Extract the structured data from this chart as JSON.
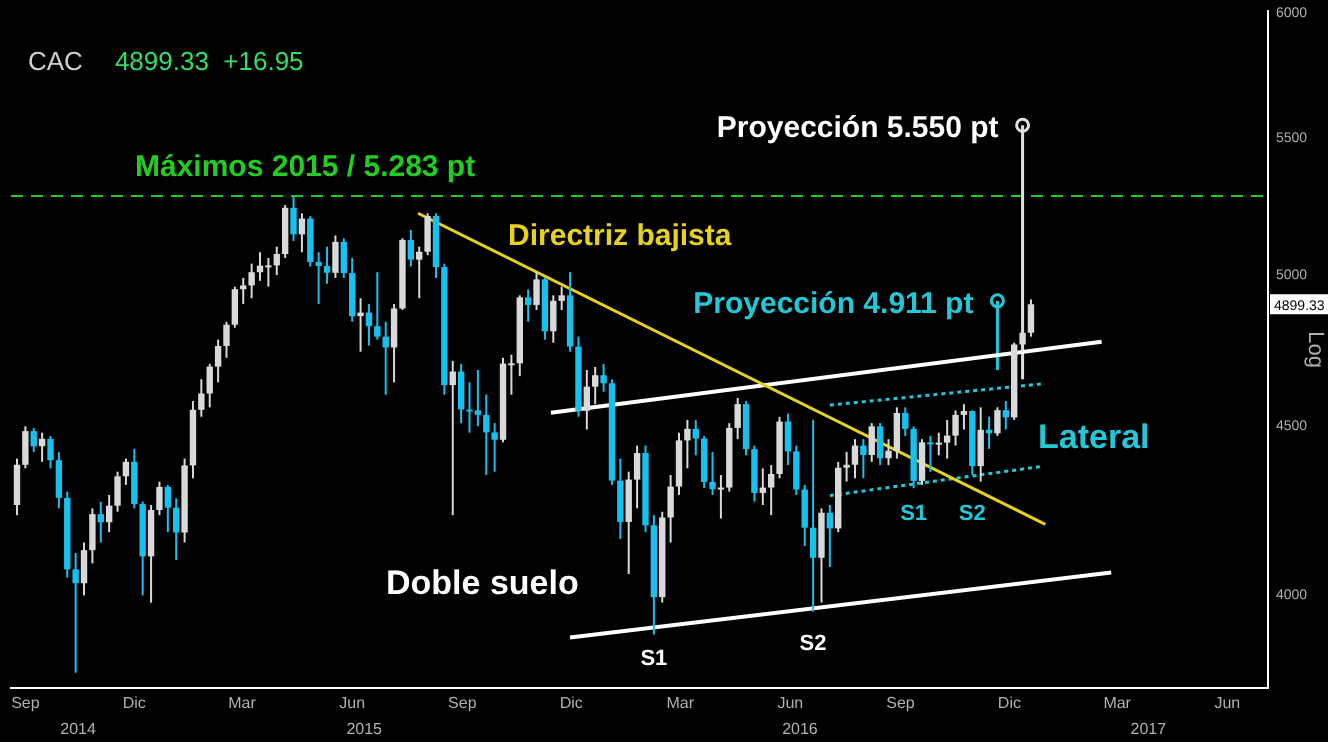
{
  "chart_data": {
    "type": "candlestick",
    "title": "CAC",
    "subtitle": "4899.33  +16.95",
    "ylabel": "Log",
    "log": "y",
    "xlim": [
      "2014-08-20",
      "2017-07-05"
    ],
    "xticks": [
      {
        "value": "2014-09-01",
        "label": "Sep"
      },
      {
        "value": "2014-12-01",
        "label": "Dic"
      },
      {
        "value": "2015-03-01",
        "label": "Mar"
      },
      {
        "value": "2015-06-01",
        "label": "Jun"
      },
      {
        "value": "2015-09-01",
        "label": "Sep"
      },
      {
        "value": "2015-12-01",
        "label": "Dic"
      },
      {
        "value": "2016-03-01",
        "label": "Mar"
      },
      {
        "value": "2016-06-01",
        "label": "Jun"
      },
      {
        "value": "2016-09-01",
        "label": "Sep"
      },
      {
        "value": "2016-12-01",
        "label": "Dic"
      },
      {
        "value": "2017-03-01",
        "label": "Mar"
      },
      {
        "value": "2017-06-01",
        "label": "Jun"
      }
    ],
    "x2lim": [
      "2014-08-20",
      "2017-07-05"
    ],
    "x2ticks": [
      {
        "value": "2014-10-15",
        "label": "2014"
      },
      {
        "value": "2015-06-11",
        "label": "2015"
      },
      {
        "value": "2016-06-09",
        "label": "2016"
      },
      {
        "value": "2017-03-27",
        "label": "2017"
      }
    ],
    "ylim": [
      3750,
      6010
    ],
    "yticks": [
      4000,
      4500,
      5000,
      5500,
      6000
    ],
    "grid": false,
    "legend": false,
    "x": [
      "2014-08-25",
      "2014-09-01",
      "2014-09-08",
      "2014-09-15",
      "2014-09-22",
      "2014-09-29",
      "2014-10-06",
      "2014-10-13",
      "2014-10-20",
      "2014-10-27",
      "2014-11-03",
      "2014-11-10",
      "2014-11-17",
      "2014-11-24",
      "2014-12-01",
      "2014-12-08",
      "2014-12-15",
      "2014-12-22",
      "2014-12-29",
      "2015-01-05",
      "2015-01-12",
      "2015-01-19",
      "2015-01-26",
      "2015-02-02",
      "2015-02-09",
      "2015-02-16",
      "2015-02-23",
      "2015-03-02",
      "2015-03-09",
      "2015-03-16",
      "2015-03-23",
      "2015-03-30",
      "2015-04-06",
      "2015-04-13",
      "2015-04-20",
      "2015-04-27",
      "2015-05-04",
      "2015-05-11",
      "2015-05-18",
      "2015-05-25",
      "2015-06-01",
      "2015-06-08",
      "2015-06-15",
      "2015-06-22",
      "2015-06-29",
      "2015-07-06",
      "2015-07-13",
      "2015-07-20",
      "2015-07-27",
      "2015-08-03",
      "2015-08-10",
      "2015-08-17",
      "2015-08-24",
      "2015-08-31",
      "2015-09-07",
      "2015-09-14",
      "2015-09-21",
      "2015-09-28",
      "2015-10-05",
      "2015-10-12",
      "2015-10-19",
      "2015-10-26",
      "2015-11-02",
      "2015-11-09",
      "2015-11-16",
      "2015-11-23",
      "2015-11-30",
      "2015-12-07",
      "2015-12-14",
      "2015-12-21",
      "2015-12-28",
      "2016-01-04",
      "2016-01-11",
      "2016-01-18",
      "2016-01-25",
      "2016-02-01",
      "2016-02-08",
      "2016-02-15",
      "2016-02-22",
      "2016-02-29",
      "2016-03-07",
      "2016-03-14",
      "2016-03-21",
      "2016-03-28",
      "2016-04-04",
      "2016-04-11",
      "2016-04-18",
      "2016-04-25",
      "2016-05-02",
      "2016-05-09",
      "2016-05-16",
      "2016-05-23",
      "2016-05-30",
      "2016-06-06",
      "2016-06-13",
      "2016-06-20",
      "2016-06-27",
      "2016-07-04",
      "2016-07-11",
      "2016-07-18",
      "2016-07-25",
      "2016-08-01",
      "2016-08-08",
      "2016-08-15",
      "2016-08-22",
      "2016-08-29",
      "2016-09-05",
      "2016-09-12",
      "2016-09-19",
      "2016-09-26",
      "2016-10-03",
      "2016-10-10",
      "2016-10-17",
      "2016-10-24",
      "2016-10-31",
      "2016-11-07",
      "2016-11-14",
      "2016-11-21",
      "2016-11-28",
      "2016-12-05",
      "2016-12-12",
      "2016-12-19"
    ],
    "ohlc": [
      [
        4260,
        4400,
        4230,
        4381
      ],
      [
        4381,
        4500,
        4370,
        4485
      ],
      [
        4485,
        4495,
        4420,
        4438
      ],
      [
        4438,
        4480,
        4390,
        4461
      ],
      [
        4461,
        4470,
        4370,
        4395
      ],
      [
        4395,
        4420,
        4250,
        4281
      ],
      [
        4281,
        4300,
        4050,
        4073
      ],
      [
        4073,
        4120,
        3790,
        4034
      ],
      [
        4034,
        4150,
        4000,
        4128
      ],
      [
        4128,
        4250,
        4090,
        4233
      ],
      [
        4233,
        4270,
        4150,
        4209
      ],
      [
        4209,
        4290,
        4180,
        4258
      ],
      [
        4258,
        4360,
        4240,
        4346
      ],
      [
        4346,
        4400,
        4320,
        4390
      ],
      [
        4390,
        4430,
        4250,
        4263
      ],
      [
        4263,
        4270,
        4000,
        4110
      ],
      [
        4110,
        4260,
        3980,
        4245
      ],
      [
        4245,
        4330,
        4230,
        4314
      ],
      [
        4314,
        4320,
        4180,
        4252
      ],
      [
        4252,
        4280,
        4100,
        4179
      ],
      [
        4179,
        4400,
        4150,
        4379
      ],
      [
        4379,
        4580,
        4340,
        4552
      ],
      [
        4552,
        4650,
        4530,
        4604
      ],
      [
        4604,
        4700,
        4560,
        4691
      ],
      [
        4691,
        4780,
        4640,
        4759
      ],
      [
        4759,
        4840,
        4720,
        4830
      ],
      [
        4830,
        4960,
        4820,
        4951
      ],
      [
        4951,
        4990,
        4900,
        4964
      ],
      [
        4964,
        5040,
        4920,
        5010
      ],
      [
        5010,
        5080,
        4980,
        5033
      ],
      [
        5033,
        5060,
        4960,
        5034
      ],
      [
        5034,
        5100,
        5000,
        5074
      ],
      [
        5074,
        5250,
        5060,
        5240
      ],
      [
        5240,
        5283,
        5120,
        5144
      ],
      [
        5144,
        5220,
        5080,
        5201
      ],
      [
        5201,
        5210,
        5030,
        5046
      ],
      [
        5046,
        5080,
        4900,
        5032
      ],
      [
        5032,
        5100,
        4970,
        5008
      ],
      [
        5008,
        5140,
        4990,
        5117
      ],
      [
        5117,
        5130,
        4990,
        5007
      ],
      [
        5007,
        5060,
        4840,
        4859
      ],
      [
        4859,
        4920,
        4740,
        4871
      ],
      [
        4871,
        4900,
        4760,
        4825
      ],
      [
        4825,
        5010,
        4780,
        4790
      ],
      [
        4790,
        4840,
        4600,
        4754
      ],
      [
        4754,
        4900,
        4640,
        4885
      ],
      [
        4885,
        5130,
        4880,
        5124
      ],
      [
        5124,
        5160,
        5030,
        5054
      ],
      [
        5054,
        5100,
        4920,
        5082
      ],
      [
        5082,
        5220,
        5070,
        5210
      ],
      [
        5210,
        5220,
        4990,
        5028
      ],
      [
        5028,
        5040,
        4600,
        4631
      ],
      [
        4631,
        4710,
        4230,
        4675
      ],
      [
        4675,
        4700,
        4510,
        4553
      ],
      [
        4553,
        4640,
        4480,
        4550
      ],
      [
        4550,
        4680,
        4500,
        4536
      ],
      [
        4536,
        4600,
        4350,
        4481
      ],
      [
        4481,
        4510,
        4360,
        4458
      ],
      [
        4458,
        4720,
        4450,
        4701
      ],
      [
        4701,
        4730,
        4600,
        4702
      ],
      [
        4702,
        4930,
        4660,
        4923
      ],
      [
        4923,
        4950,
        4840,
        4897
      ],
      [
        4897,
        5010,
        4880,
        4985
      ],
      [
        4985,
        4990,
        4780,
        4808
      ],
      [
        4808,
        4930,
        4770,
        4911
      ],
      [
        4911,
        4960,
        4880,
        4930
      ],
      [
        4930,
        5010,
        4740,
        4757
      ],
      [
        4757,
        4790,
        4530,
        4549
      ],
      [
        4549,
        4680,
        4490,
        4626
      ],
      [
        4626,
        4690,
        4570,
        4663
      ],
      [
        4663,
        4700,
        4610,
        4637
      ],
      [
        4637,
        4650,
        4320,
        4333
      ],
      [
        4333,
        4400,
        4160,
        4210
      ],
      [
        4210,
        4360,
        4060,
        4336
      ],
      [
        4336,
        4440,
        4250,
        4417
      ],
      [
        4417,
        4440,
        4180,
        4200
      ],
      [
        4200,
        4230,
        3892,
        3995
      ],
      [
        3995,
        4240,
        3980,
        4223
      ],
      [
        4223,
        4350,
        4150,
        4315
      ],
      [
        4315,
        4480,
        4290,
        4456
      ],
      [
        4456,
        4520,
        4370,
        4492
      ],
      [
        4492,
        4520,
        4410,
        4462
      ],
      [
        4462,
        4470,
        4310,
        4329
      ],
      [
        4329,
        4420,
        4290,
        4307
      ],
      [
        4307,
        4350,
        4220,
        4312
      ],
      [
        4312,
        4510,
        4300,
        4495
      ],
      [
        4495,
        4590,
        4460,
        4570
      ],
      [
        4570,
        4580,
        4410,
        4429
      ],
      [
        4429,
        4440,
        4270,
        4296
      ],
      [
        4296,
        4370,
        4260,
        4312
      ],
      [
        4312,
        4380,
        4230,
        4353
      ],
      [
        4353,
        4530,
        4340,
        4515
      ],
      [
        4515,
        4540,
        4380,
        4422
      ],
      [
        4422,
        4440,
        4290,
        4306
      ],
      [
        4306,
        4320,
        4140,
        4193
      ],
      [
        4193,
        4520,
        3955,
        4106
      ],
      [
        4106,
        4250,
        3980,
        4237
      ],
      [
        4237,
        4260,
        4080,
        4191
      ],
      [
        4191,
        4390,
        4180,
        4372
      ],
      [
        4372,
        4420,
        4330,
        4381
      ],
      [
        4381,
        4460,
        4340,
        4440
      ],
      [
        4440,
        4460,
        4340,
        4411
      ],
      [
        4411,
        4510,
        4390,
        4500
      ],
      [
        4500,
        4510,
        4380,
        4401
      ],
      [
        4401,
        4460,
        4380,
        4424
      ],
      [
        4424,
        4560,
        4400,
        4542
      ],
      [
        4542,
        4560,
        4470,
        4492
      ],
      [
        4492,
        4500,
        4310,
        4332
      ],
      [
        4332,
        4460,
        4320,
        4450
      ],
      [
        4450,
        4470,
        4360,
        4448
      ],
      [
        4448,
        4480,
        4410,
        4449
      ],
      [
        4449,
        4520,
        4400,
        4471
      ],
      [
        4471,
        4550,
        4440,
        4536
      ],
      [
        4536,
        4570,
        4490,
        4548
      ],
      [
        4548,
        4550,
        4350,
        4377
      ],
      [
        4377,
        4560,
        4330,
        4489
      ],
      [
        4489,
        4530,
        4430,
        4478
      ],
      [
        4478,
        4560,
        4470,
        4551
      ],
      [
        4551,
        4580,
        4490,
        4528
      ],
      [
        4528,
        4770,
        4520,
        4764
      ],
      [
        4764,
        4840,
        4740,
        4803
      ],
      [
        4803,
        4916,
        4790,
        4899.33
      ]
    ],
    "colors": [
      "#d9d9d9",
      "#d9d9d9",
      "#18c0ee",
      "#d9d9d9",
      "#18c0ee",
      "#18c0ee",
      "#18c0ee",
      "#18c0ee",
      "#d9d9d9",
      "#d9d9d9",
      "#18c0ee",
      "#d9d9d9",
      "#d9d9d9",
      "#d9d9d9",
      "#18c0ee",
      "#18c0ee",
      "#d9d9d9",
      "#d9d9d9",
      "#18c0ee",
      "#18c0ee",
      "#d9d9d9",
      "#d9d9d9",
      "#d9d9d9",
      "#d9d9d9",
      "#d9d9d9",
      "#d9d9d9",
      "#d9d9d9",
      "#d9d9d9",
      "#d9d9d9",
      "#d9d9d9",
      "#d9d9d9",
      "#d9d9d9",
      "#d9d9d9",
      "#18c0ee",
      "#d9d9d9",
      "#18c0ee",
      "#18c0ee",
      "#18c0ee",
      "#d9d9d9",
      "#18c0ee",
      "#18c0ee",
      "#d9d9d9",
      "#18c0ee",
      "#18c0ee",
      "#18c0ee",
      "#d9d9d9",
      "#d9d9d9",
      "#18c0ee",
      "#d9d9d9",
      "#d9d9d9",
      "#18c0ee",
      "#18c0ee",
      "#d9d9d9",
      "#18c0ee",
      "#18c0ee",
      "#18c0ee",
      "#18c0ee",
      "#18c0ee",
      "#d9d9d9",
      "#d9d9d9",
      "#d9d9d9",
      "#18c0ee",
      "#d9d9d9",
      "#18c0ee",
      "#d9d9d9",
      "#d9d9d9",
      "#18c0ee",
      "#18c0ee",
      "#d9d9d9",
      "#d9d9d9",
      "#18c0ee",
      "#18c0ee",
      "#18c0ee",
      "#d9d9d9",
      "#d9d9d9",
      "#18c0ee",
      "#18c0ee",
      "#d9d9d9",
      "#d9d9d9",
      "#d9d9d9",
      "#d9d9d9",
      "#18c0ee",
      "#18c0ee",
      "#18c0ee",
      "#d9d9d9",
      "#d9d9d9",
      "#d9d9d9",
      "#18c0ee",
      "#18c0ee",
      "#d9d9d9",
      "#d9d9d9",
      "#d9d9d9",
      "#18c0ee",
      "#18c0ee",
      "#18c0ee",
      "#18c0ee",
      "#d9d9d9",
      "#18c0ee",
      "#d9d9d9",
      "#d9d9d9",
      "#d9d9d9",
      "#18c0ee",
      "#d9d9d9",
      "#18c0ee",
      "#d9d9d9",
      "#d9d9d9",
      "#18c0ee",
      "#18c0ee",
      "#d9d9d9",
      "#18c0ee",
      "#d9d9d9",
      "#d9d9d9",
      "#d9d9d9",
      "#d9d9d9",
      "#18c0ee",
      "#d9d9d9",
      "#18c0ee",
      "#d9d9d9",
      "#18c0ee",
      "#d9d9d9",
      "#d9d9d9",
      "#d9d9d9"
    ],
    "series": [
      {
        "type": "line",
        "name": "Directriz bajista",
        "color": "#e6d21e",
        "x": [
          "2015-07-26",
          "2016-12-31"
        ],
        "values": [
          5220,
          4203
        ]
      },
      {
        "type": "line",
        "color": "#ffffff",
        "x": [
          "2015-11-14",
          "2017-02-16"
        ],
        "values": [
          4543,
          4773
        ]
      },
      {
        "type": "line",
        "color": "#ffffff",
        "x": [
          "2015-11-30",
          "2017-02-24"
        ],
        "values": [
          3884,
          4064
        ]
      },
      {
        "type": "line",
        "color": "#22c8d8",
        "line_style": "dotted",
        "x": [
          "2016-07-04",
          "2016-12-28"
        ],
        "values": [
          4567,
          4635
        ]
      },
      {
        "type": "line",
        "color": "#22c8d8",
        "line_style": "dotted",
        "x": [
          "2016-07-04",
          "2016-12-28"
        ],
        "values": [
          4288,
          4376
        ]
      },
      {
        "type": "line",
        "color": "#e0e0e0",
        "x": [
          "2016-12-12",
          "2016-12-12"
        ],
        "values": [
          4650,
          5550
        ]
      },
      {
        "type": "scatter",
        "color": "#e0e0e0",
        "marker": "circle",
        "x": [
          "2016-12-12"
        ],
        "values": [
          5550
        ]
      },
      {
        "type": "line",
        "color": "#22c8d8",
        "x": [
          "2016-11-21",
          "2016-11-21"
        ],
        "values": [
          4680,
          4911
        ]
      },
      {
        "type": "scatter",
        "color": "#22c8d8",
        "marker": "circle",
        "x": [
          "2016-11-21"
        ],
        "values": [
          4911
        ]
      }
    ],
    "ref_lines": [
      {
        "axis": "y",
        "value": 5283,
        "label": "Máximos 2015 / 5.283 pt",
        "color": "#22cc22",
        "line_style": "dashed"
      }
    ],
    "annotations": [
      {
        "text": "Proyección 5.550 pt",
        "x": "2016-12-12",
        "y": 5550
      },
      {
        "text": "Proyección 4.911 pt",
        "x": "2016-11-21",
        "y": 4911
      },
      {
        "text": "S1",
        "x": "2016-02-08",
        "y": 3892
      },
      {
        "text": "S2",
        "x": "2016-06-20",
        "y": 3955
      },
      {
        "text": "S1",
        "x": "2016-09-12",
        "y": 4310
      },
      {
        "text": "S2",
        "x": "2016-10-31",
        "y": 4330
      },
      "Lateral",
      "Doble suelo",
      {
        "text": "4899.33",
        "y": 4899.33
      }
    ]
  }
}
